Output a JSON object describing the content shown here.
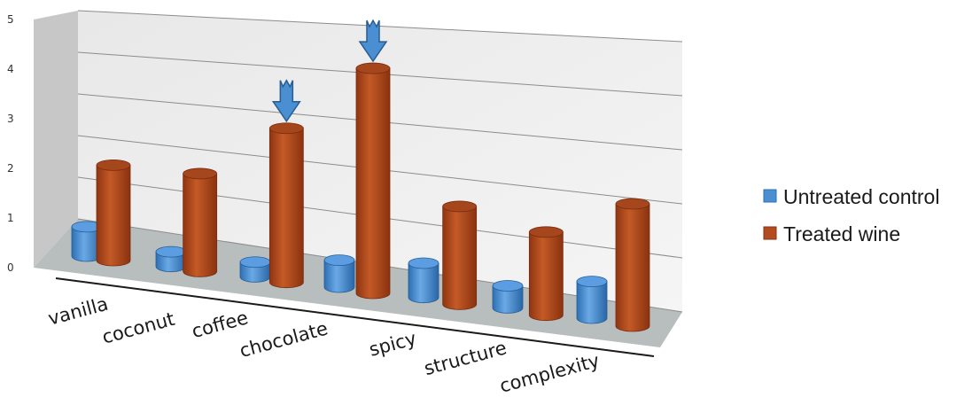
{
  "chart_data": {
    "type": "bar",
    "title": "",
    "xlabel": "",
    "ylabel": "",
    "ylim": [
      0,
      5
    ],
    "yticks": [
      "0",
      "1",
      "2",
      "3",
      "4",
      "5"
    ],
    "grid": true,
    "legend_position": "right",
    "categories": [
      "vanilla",
      "coconut",
      "coffee",
      "chocolate",
      "spicy",
      "structure",
      "complexity"
    ],
    "series": [
      {
        "name": "Untreated control",
        "color": "#4a8fd1",
        "values": [
          0.6,
          0.3,
          0.3,
          0.55,
          0.7,
          0.45,
          0.75
        ]
      },
      {
        "name": "Treated wine",
        "color": "#b24c1e",
        "values": [
          1.95,
          2.0,
          3.15,
          4.6,
          2.0,
          1.7,
          2.5
        ]
      }
    ],
    "highlights": [
      {
        "category": "coffee",
        "series": "Treated wine",
        "marker": "down-arrow",
        "color": "#4a8fd1"
      },
      {
        "category": "chocolate",
        "series": "Treated wine",
        "marker": "down-arrow",
        "color": "#4a8fd1"
      }
    ]
  }
}
